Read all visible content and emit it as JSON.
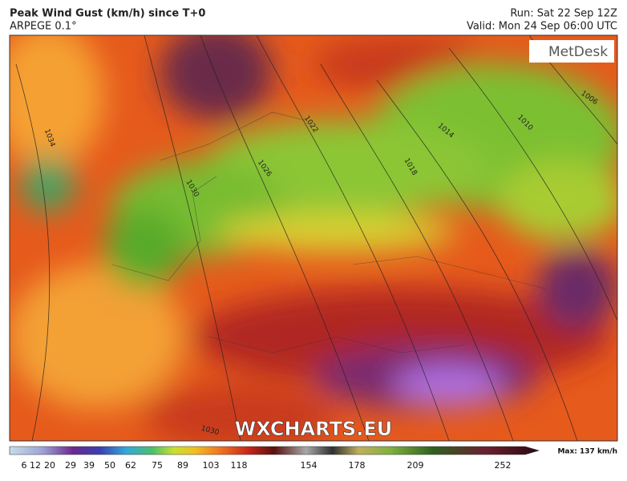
{
  "header": {
    "title": "Peak Wind Gust (km/h) since T+0",
    "model": "ARPEGE 0.1°",
    "run": "Run: Sat 22 Sep 12Z",
    "valid": "Valid: Mon 24 Sep 06:00 UTC"
  },
  "logo": "MetDesk",
  "watermark": "WXCHARTS.EU",
  "isobars": [
    1034,
    1030,
    1026,
    1022,
    1018,
    1014,
    1010,
    1006,
    1030
  ],
  "colorbar": {
    "ticks": [
      6,
      12,
      20,
      29,
      39,
      50,
      62,
      75,
      89,
      103,
      118,
      154,
      178,
      209,
      252
    ],
    "max_label": "Max: 137 km/h"
  }
}
